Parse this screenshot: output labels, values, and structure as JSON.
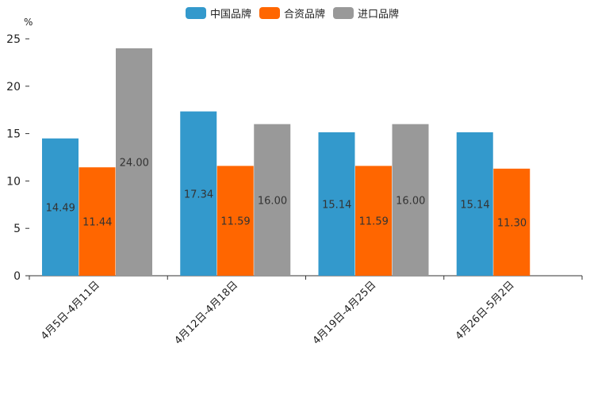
{
  "chart_data": {
    "type": "bar",
    "unit": "%",
    "categories": [
      "4月5日-4月11日",
      "4月12日-4月18日",
      "4月19日-4月25日",
      "4月26日-5月2日"
    ],
    "series": [
      {
        "name": "中国品牌",
        "color": "#3399cc",
        "values": [
          14.49,
          17.34,
          15.14,
          15.14
        ],
        "labels": [
          "14.49",
          "17.34",
          "15.14",
          "15.14"
        ]
      },
      {
        "name": "合资品牌",
        "color": "#ff6600",
        "values": [
          11.44,
          11.59,
          11.59,
          11.3
        ],
        "labels": [
          "11.44",
          "11.59",
          "11.59",
          "11.30"
        ]
      },
      {
        "name": "进口品牌",
        "color": "#999999",
        "values": [
          24.0,
          16.0,
          16.0,
          null
        ],
        "labels": [
          "24.00",
          "16.00",
          "16.00",
          null
        ]
      }
    ],
    "ylim": [
      0,
      25
    ],
    "yticks": [
      0,
      5,
      10,
      15,
      20,
      25
    ],
    "yticklabels": [
      "0",
      "5",
      "10",
      "15",
      "20",
      "25"
    ],
    "legend_position": "top-center"
  }
}
